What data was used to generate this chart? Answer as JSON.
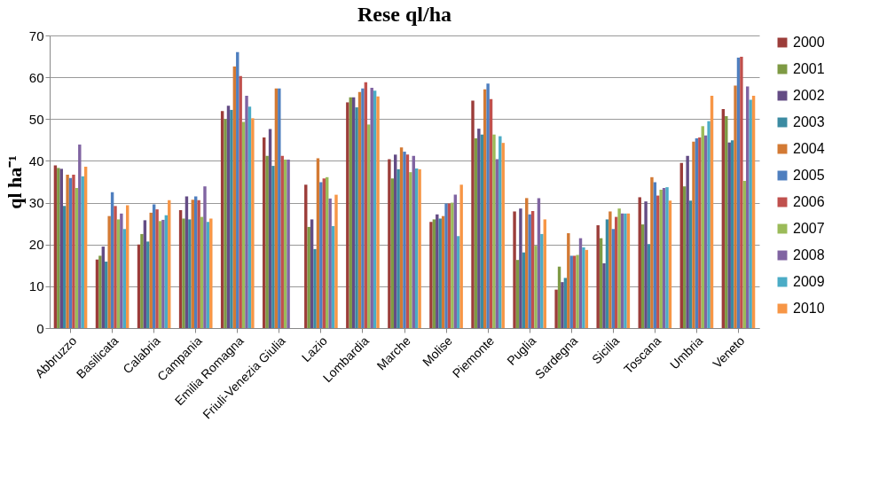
{
  "chart_data": {
    "type": "bar",
    "title": "Rese ql/ha",
    "ylabel": "ql ha⁻¹",
    "categories": [
      "Abbruzzo",
      "Basilicata",
      "Calabria",
      "Campania",
      "Emilia Romagna",
      "Friuli-Venezia Giulia",
      "Lazio",
      "Lombardia",
      "Marche",
      "Molise",
      "Piemonte",
      "Puglia",
      "Sardegna",
      "Sicilia",
      "Toscana",
      "Umbria",
      "Veneto"
    ],
    "ylim": [
      0,
      70
    ],
    "yticks": [
      0,
      10,
      20,
      30,
      40,
      50,
      60,
      70
    ],
    "grid": "y",
    "legend": "right",
    "series": [
      {
        "name": "2000",
        "color": "#9c3d3a",
        "values": [
          38.9,
          16.4,
          20.0,
          28.2,
          51.9,
          45.6,
          34.3,
          54.0,
          40.4,
          25.4,
          54.4,
          27.9,
          9.2,
          24.6,
          31.3,
          39.5,
          52.4
        ]
      },
      {
        "name": "2001",
        "color": "#7e9a44",
        "values": [
          38.3,
          17.3,
          22.5,
          26.2,
          50.0,
          41.2,
          24.2,
          55.2,
          35.8,
          26.0,
          45.4,
          16.3,
          14.7,
          21.5,
          24.8,
          33.9,
          50.7
        ]
      },
      {
        "name": "2002",
        "color": "#644c85",
        "values": [
          38.1,
          19.5,
          25.8,
          31.5,
          53.2,
          47.6,
          26.0,
          55.2,
          41.5,
          27.2,
          47.7,
          28.6,
          11.0,
          15.5,
          30.3,
          41.2,
          44.4
        ]
      },
      {
        "name": "2003",
        "color": "#3b8ba2",
        "values": [
          29.2,
          15.9,
          20.7,
          26.0,
          52.2,
          38.8,
          18.9,
          52.8,
          38.0,
          26.2,
          46.3,
          18.1,
          12.0,
          26.0,
          20.1,
          30.5,
          44.9
        ]
      },
      {
        "name": "2004",
        "color": "#d37a34",
        "values": [
          36.7,
          26.8,
          27.6,
          30.7,
          62.6,
          57.3,
          40.6,
          56.5,
          43.2,
          26.8,
          57.1,
          31.1,
          22.7,
          27.9,
          36.1,
          44.6,
          58.0
        ]
      },
      {
        "name": "2005",
        "color": "#4f7fbf",
        "values": [
          35.9,
          32.5,
          29.6,
          31.5,
          66.0,
          57.3,
          34.9,
          57.3,
          42.2,
          29.8,
          58.5,
          27.2,
          17.3,
          23.7,
          34.9,
          45.4,
          64.7
        ]
      },
      {
        "name": "2006",
        "color": "#c0504d",
        "values": [
          36.7,
          29.2,
          28.4,
          30.6,
          60.3,
          41.2,
          35.8,
          58.8,
          41.5,
          29.8,
          54.8,
          28.0,
          17.3,
          26.6,
          31.7,
          45.6,
          64.9
        ]
      },
      {
        "name": "2007",
        "color": "#9bbb59",
        "values": [
          33.5,
          26.0,
          25.6,
          26.6,
          49.3,
          40.3,
          36.1,
          48.7,
          37.3,
          30.0,
          46.3,
          19.7,
          17.5,
          28.6,
          33.1,
          48.3,
          35.2
        ]
      },
      {
        "name": "2008",
        "color": "#8064a2",
        "values": [
          43.9,
          27.4,
          25.9,
          33.9,
          55.6,
          40.3,
          31.0,
          57.5,
          41.2,
          31.9,
          40.4,
          31.1,
          21.5,
          27.4,
          33.5,
          46.1,
          57.8
        ]
      },
      {
        "name": "2009",
        "color": "#4bacc6",
        "values": [
          36.3,
          23.7,
          27.0,
          25.4,
          53.0,
          null,
          24.4,
          56.8,
          38.2,
          22.0,
          45.9,
          22.5,
          19.3,
          27.4,
          33.7,
          49.5,
          54.6
        ]
      },
      {
        "name": "2010",
        "color": "#f79646",
        "values": [
          38.6,
          29.4,
          30.6,
          26.2,
          50.2,
          null,
          31.9,
          55.4,
          38.0,
          34.3,
          44.3,
          26.0,
          18.7,
          27.4,
          30.5,
          55.6,
          55.6
        ]
      }
    ]
  }
}
